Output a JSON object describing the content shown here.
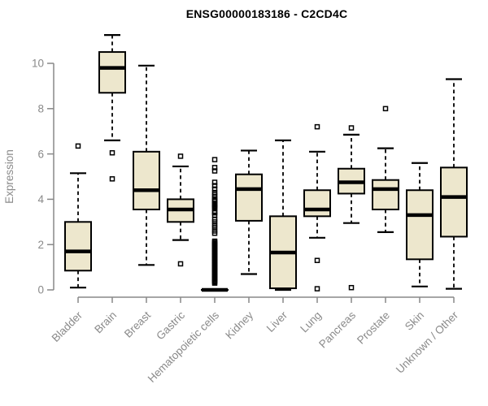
{
  "chart_data": {
    "type": "boxplot",
    "title": "ENSG00000183186 - C2CD4C",
    "xlabel": "",
    "ylabel": "Expression",
    "y_ticks": [
      0,
      2,
      4,
      6,
      8,
      10
    ],
    "ylim": [
      0,
      11.4
    ],
    "grid": false,
    "legend": "none",
    "box_fill_color": "#EDE7CD",
    "box_stroke_color": "#000000",
    "axis_color": "#888888",
    "label_color": "#8A8A8A",
    "title_color": "#000000",
    "categories": [
      "Bladder",
      "Brain",
      "Breast",
      "Gastric",
      "Hematopoietic cells",
      "Kidney",
      "Liver",
      "Lung",
      "Pancreas",
      "Prostate",
      "Skin",
      "Unknown / Other"
    ],
    "series": [
      {
        "name": "Bladder",
        "whisker_low": 0.1,
        "q1": 0.85,
        "median": 1.7,
        "q3": 3.0,
        "whisker_high": 5.15,
        "outliers": [
          6.35
        ]
      },
      {
        "name": "Brain",
        "whisker_low": 6.6,
        "q1": 8.7,
        "median": 9.8,
        "q3": 10.5,
        "whisker_high": 11.25,
        "outliers": [
          6.05,
          4.9
        ]
      },
      {
        "name": "Breast",
        "whisker_low": 1.1,
        "q1": 3.55,
        "median": 4.4,
        "q3": 6.1,
        "whisker_high": 9.9,
        "outliers": []
      },
      {
        "name": "Gastric",
        "whisker_low": 2.2,
        "q1": 3.0,
        "median": 3.55,
        "q3": 4.0,
        "whisker_high": 5.45,
        "outliers": [
          5.9,
          1.15
        ]
      },
      {
        "name": "Hematopoietic cells",
        "whisker_low": 0,
        "q1": 0,
        "median": 0,
        "q3": 0,
        "whisker_high": 0,
        "outliers": [
          5.75,
          5.4,
          5.25,
          4.75,
          4.6,
          4.45,
          4.3,
          4.2,
          4.1,
          4.0,
          3.95,
          3.9,
          3.8,
          3.75,
          3.7,
          3.65,
          3.6,
          3.45,
          3.4,
          3.3,
          3.1,
          3.0,
          2.85,
          2.75,
          2.6,
          2.5,
          2.15,
          2.1,
          2.05,
          2.0,
          1.95,
          1.9,
          1.85,
          1.8,
          1.75,
          1.7,
          1.65,
          1.6,
          1.55,
          1.5,
          1.45,
          1.4,
          1.35,
          1.3,
          1.25,
          1.2,
          1.15,
          1.1,
          1.05,
          1.0,
          0.95,
          0.9,
          0.85,
          0.8,
          0.75,
          0.7,
          0.65,
          0.6,
          0.55,
          0.5,
          0.45,
          0.4,
          0.35,
          0.3
        ]
      },
      {
        "name": "Kidney",
        "whisker_low": 0.7,
        "q1": 3.05,
        "median": 4.45,
        "q3": 5.1,
        "whisker_high": 6.15,
        "outliers": []
      },
      {
        "name": "Liver",
        "whisker_low": 0,
        "q1": 0.07,
        "median": 1.65,
        "q3": 3.25,
        "whisker_high": 6.6,
        "outliers": []
      },
      {
        "name": "Lung",
        "whisker_low": 2.3,
        "q1": 3.25,
        "median": 3.55,
        "q3": 4.4,
        "whisker_high": 6.1,
        "outliers": [
          7.2,
          1.3,
          0.05
        ]
      },
      {
        "name": "Pancreas",
        "whisker_low": 2.95,
        "q1": 4.25,
        "median": 4.75,
        "q3": 5.35,
        "whisker_high": 6.85,
        "outliers": [
          7.15,
          0.1
        ]
      },
      {
        "name": "Prostate",
        "whisker_low": 2.55,
        "q1": 3.55,
        "median": 4.45,
        "q3": 4.85,
        "whisker_high": 6.25,
        "outliers": [
          8.0
        ]
      },
      {
        "name": "Skin",
        "whisker_low": 0.15,
        "q1": 1.35,
        "median": 3.3,
        "q3": 4.4,
        "whisker_high": 5.6,
        "outliers": []
      },
      {
        "name": "Unknown / Other",
        "whisker_low": 0.05,
        "q1": 2.35,
        "median": 4.1,
        "q3": 5.4,
        "whisker_high": 9.3,
        "outliers": []
      }
    ]
  }
}
